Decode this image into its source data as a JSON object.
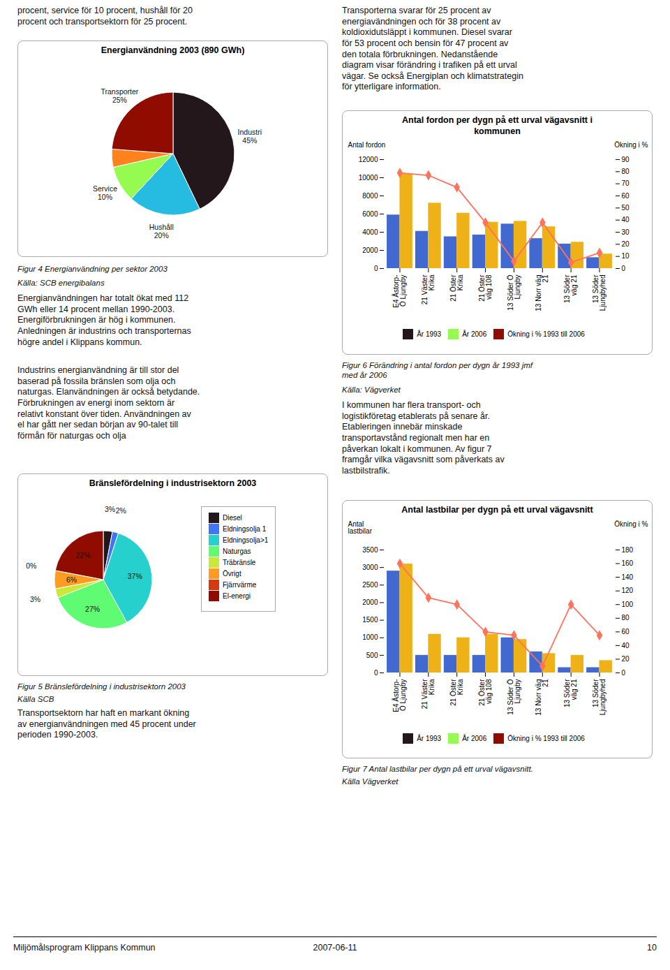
{
  "chart_data": [
    {
      "type": "pie",
      "title": "Energianvändning 2003 (890 GWh)",
      "categories": [
        "Industri",
        "Hushåll",
        "Service",
        null,
        "Transporter"
      ],
      "values": [
        45,
        20,
        10,
        5,
        25
      ],
      "value_labels": [
        "45%",
        "20%",
        "10%",
        null,
        "25%"
      ],
      "data_labels": true,
      "annotations": [
        "procent, service för 10 procent, hushåll för 20\nprocent och transportsektorn för 25 procent.",
        "Figur 4 Energianvändning per sektor 2003",
        "Källa: SCB energibalans",
        "Energianvändningen har totalt ökat med 112\nGWh eller 14 procent mellan 1990-2003.\nEnergiförbrukningen är hög i kommunen.\nAnledningen är industrins och transporternas\nhögre andel i Klippans kommun.",
        "Industrins energianvändning är till stor del\nbaserad på fossila bränslen som olja och\nnaturgas. Elanvändningen är också betydande.\nFörbrukningen av energi inom sektorn är\nrelativt konstant över tiden. Användningen av\nel har gått ner sedan början av 90-talet till\nförmån för naturgas och olja"
      ]
    },
    {
      "type": "bar",
      "title": "Antal fordon per dygn på ett urval vägavsnitt i\nkommunen",
      "categories": [
        "E4 Åstorp-\nÖ Ljungby",
        "21 Väster\nKrika",
        "21 Öster\nKrika",
        "21 Öster\nväg 108",
        "13 Söder Ö\nLjungby",
        "13 Norr väg\n21",
        "13 Söder\nväg 21",
        "13 Söder\nLjungbyhed"
      ],
      "series": [
        {
          "name": "År 1993",
          "values": [
            5900,
            4100,
            3500,
            3700,
            4900,
            3300,
            2700,
            1200
          ]
        },
        {
          "name": "År 2006",
          "values": [
            10400,
            7200,
            6100,
            5100,
            5200,
            4600,
            2900,
            1600
          ]
        },
        {
          "name": "Ökning i % 1993 till 2006",
          "type": "line",
          "marker": "diamond",
          "axis": "y2",
          "values": [
            79,
            77,
            67,
            38,
            6,
            38,
            5,
            13
          ]
        }
      ],
      "ylabel": "Antal fordon",
      "y2label": "Ökning i %",
      "ylim": [
        0,
        12000
      ],
      "yticks": [
        0,
        2000,
        4000,
        6000,
        8000,
        10000,
        12000
      ],
      "y2lim": [
        0,
        90
      ],
      "y2ticks": [
        0,
        10,
        20,
        30,
        40,
        50,
        60,
        70,
        80,
        90
      ],
      "legend": "bottom",
      "annotations": [
        "Transporterna svarar för 25 procent av\nenergiavändningen och för 38 procent av\nkoldioxidutsläppt i kommunen. Diesel svarar\nför 53 procent och bensin för 47 procent av\nden totala förbrukningen.  Nedanstående\ndiagram visar förändring i trafiken på ett urval\nvägar. Se också Energiplan och klimatstrategin\nför ytterligare information.",
        "Figur 6 Förändring i antal fordon per dygn år 1993 jmf\nmed år 2006",
        "Källa: Vägverket",
        "I kommunen har flera transport- och\nlogistikföretag etablerats på senare år.\nEtableringen innebär minskade\ntransportavstånd regionalt men har en\npåverkan lokalt i kommunen. Av figur 7\nframgår vilka vägavsnitt som påverkats av\nlastbilstrafik."
      ]
    },
    {
      "type": "pie",
      "title": "Bränslefördelning i industrisektorn 2003",
      "categories": [
        "Diesel",
        "Eldningsolja 1",
        "Eldningsolja>1",
        "Naturgas",
        "Träbränsle",
        "Övrigt",
        "Fjärrvärme",
        "El-energi"
      ],
      "values": [
        3,
        2,
        37,
        27,
        3,
        6,
        0,
        22
      ],
      "value_labels": [
        "3%",
        "2%",
        "37%",
        "27%",
        "3%",
        "6%",
        "0%",
        "22%"
      ],
      "data_labels": true,
      "legend": "right",
      "annotations": [
        "Figur 5 Bränslefördelning i industrisektorn 2003",
        "Källa SCB",
        "Transportsektorn har haft en markant ökning\nav energianvändningen med 45 procent under\nperioden 1990-2003."
      ]
    },
    {
      "type": "bar",
      "title": "Antal lastbilar per dygn på ett urval vägavsnitt",
      "categories": [
        "E4 Åstorp-\nÖ Ljungby",
        "21 Väster\nKrika",
        "21 Öster\nKrika",
        "21 Öster\nväg 108",
        "13 Söder Ö\nLjungby",
        "13 Norr väg\n21",
        "13 Söder\nväg 21",
        "13 Söder\nLjungbyhed"
      ],
      "series": [
        {
          "name": "År 1993",
          "values": [
            2900,
            500,
            500,
            500,
            1000,
            600,
            150,
            150
          ]
        },
        {
          "name": "År 2006",
          "values": [
            3100,
            1100,
            1000,
            1100,
            950,
            550,
            500,
            350
          ]
        },
        {
          "name": "Ökning i % 1993 till 2006",
          "type": "line",
          "marker": "diamond",
          "axis": "y2",
          "values": [
            160,
            110,
            100,
            60,
            55,
            10,
            100,
            55
          ]
        }
      ],
      "ylabel": "Antal\nlastbilar",
      "y2label": "Ökning i %",
      "ylim": [
        0,
        3500
      ],
      "yticks": [
        0,
        500,
        1000,
        1500,
        2000,
        2500,
        3000,
        3500
      ],
      "y2lim": [
        0,
        180
      ],
      "y2ticks": [
        0,
        20,
        40,
        60,
        80,
        100,
        120,
        140,
        160,
        180
      ],
      "legend": "bottom",
      "annotations": [
        "Figur 7 Antal lastbilar per dygn på ett urval vägavsnitt.",
        "Källa Vägverket",
        "Miljömålsprogram Klippans Kommun",
        "2007-06-11",
        "10"
      ]
    }
  ]
}
